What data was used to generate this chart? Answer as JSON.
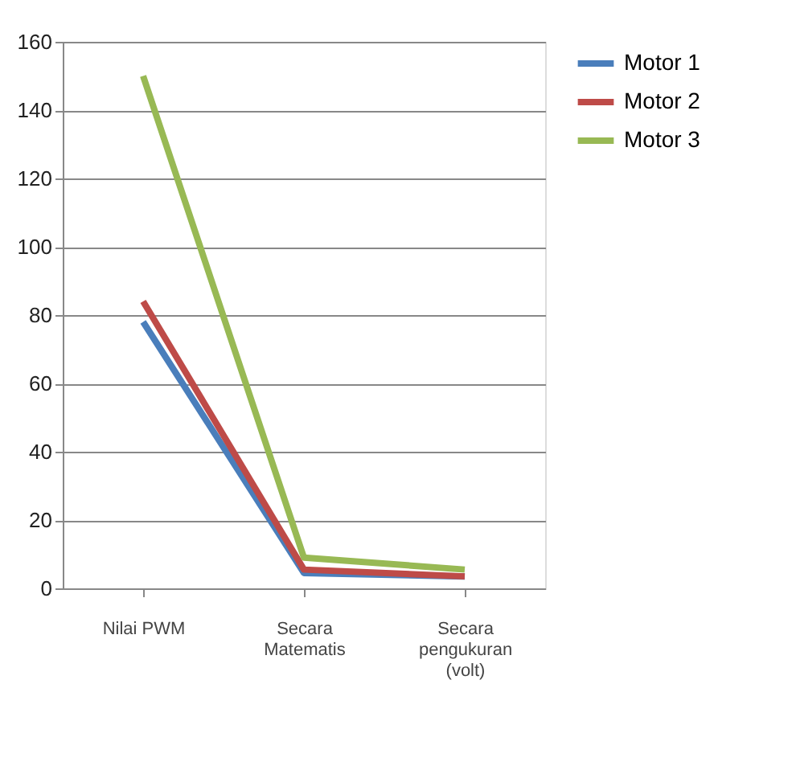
{
  "chart_data": {
    "type": "line",
    "categories": [
      "Nilai PWM",
      "Secara Matematis",
      "Secara pengukuran (volt)"
    ],
    "series": [
      {
        "name": "Motor 1",
        "color": "#4a7ebb",
        "values": [
          78,
          4.5,
          3.5
        ]
      },
      {
        "name": "Motor 2",
        "color": "#be4b48",
        "values": [
          84,
          5.5,
          3.5
        ]
      },
      {
        "name": "Motor 3",
        "color": "#98b954",
        "values": [
          150,
          9,
          5.5
        ]
      }
    ],
    "ylim": [
      0,
      160
    ],
    "yticks": [
      0,
      20,
      40,
      60,
      80,
      100,
      120,
      140,
      160
    ],
    "grid": "y",
    "legend": "right",
    "marker": "none",
    "line_style": "solid"
  }
}
